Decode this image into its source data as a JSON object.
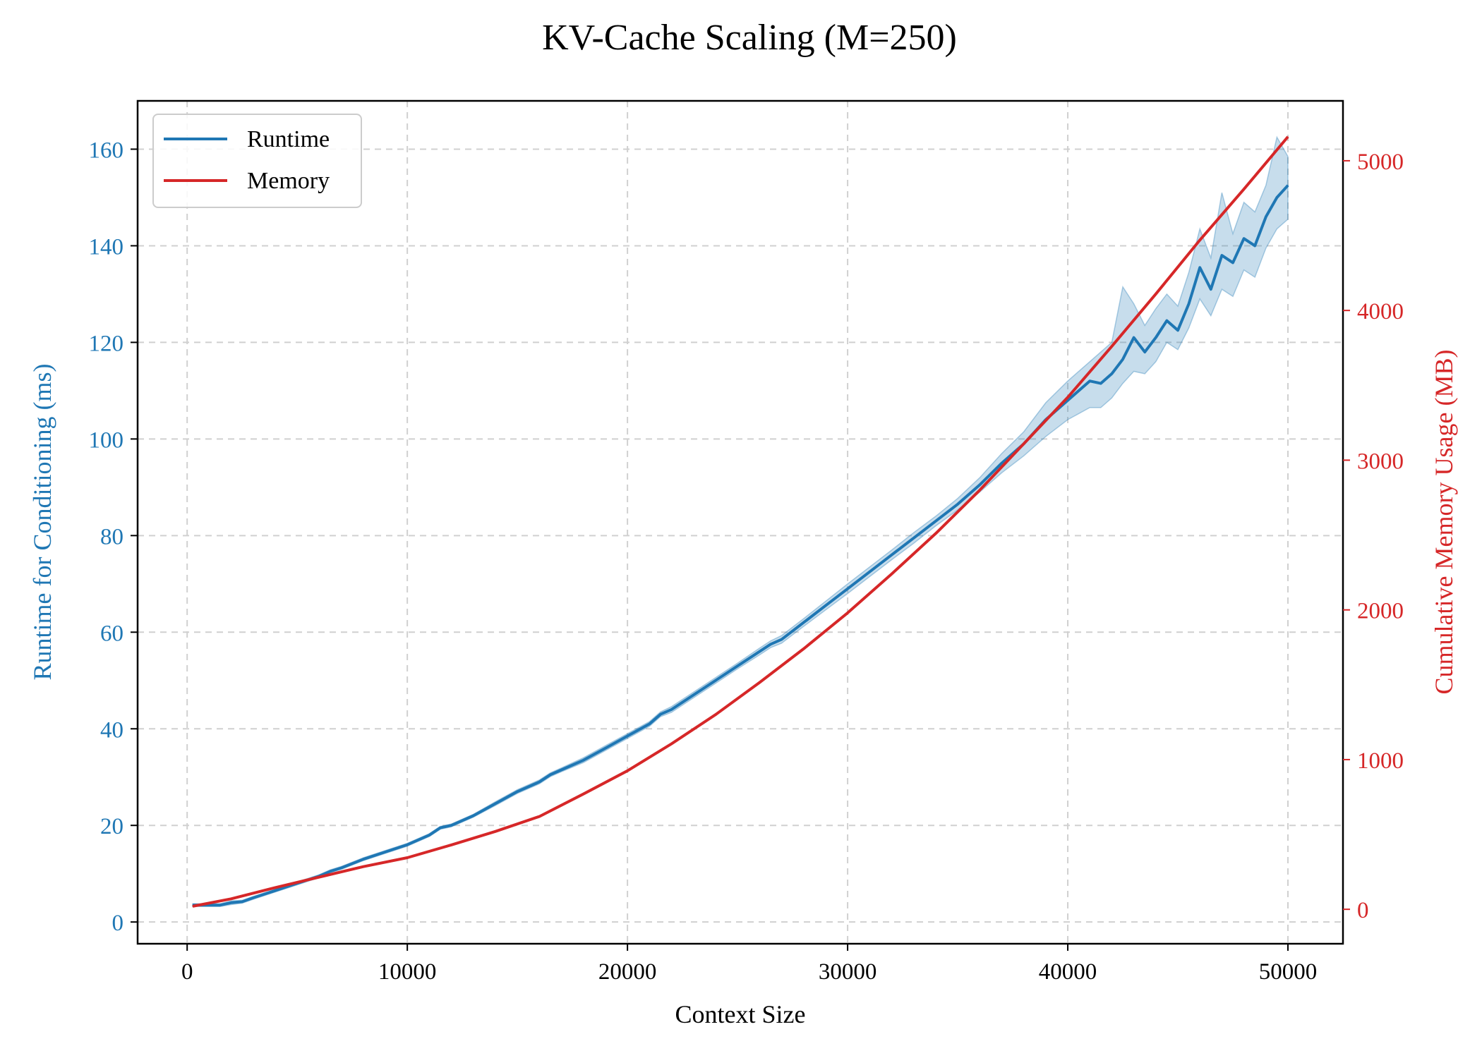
{
  "chart_data": {
    "type": "line",
    "title": "KV-Cache Scaling (M=250)",
    "xlabel": "Context Size",
    "ylabel_left": "Runtime for Conditioning (ms)",
    "ylabel_right": "Cumulative Memory Usage (MB)",
    "xlim": [
      -2250,
      52500
    ],
    "ylim_left": [
      -4.5,
      170
    ],
    "ylim_right": [
      -230,
      5400
    ],
    "x_ticks": [
      0,
      10000,
      20000,
      30000,
      40000,
      50000
    ],
    "y_left_ticks": [
      0,
      20,
      40,
      60,
      80,
      100,
      120,
      140,
      160
    ],
    "y_right_ticks": [
      0,
      1000,
      2000,
      3000,
      4000,
      5000
    ],
    "grid": true,
    "legend_position": "upper-left",
    "colors": {
      "runtime": "#1f77b4",
      "memory": "#d62728",
      "band": "#1f77b4"
    },
    "series": [
      {
        "name": "Runtime",
        "axis": "left",
        "x": [
          250,
          1500,
          2000,
          2500,
          3000,
          4000,
          5000,
          6000,
          6500,
          7000,
          8000,
          9000,
          10000,
          11000,
          11500,
          12000,
          13000,
          14000,
          15000,
          16000,
          16500,
          17000,
          18000,
          19000,
          20000,
          21000,
          21500,
          22000,
          23000,
          24000,
          25000,
          26000,
          26500,
          27000,
          28000,
          29000,
          30000,
          31000,
          32000,
          33000,
          34000,
          35000,
          36000,
          37000,
          38000,
          39000,
          40000,
          41000,
          41500,
          42000,
          42500,
          43000,
          43500,
          44000,
          44500,
          45000,
          45500,
          46000,
          46500,
          47000,
          47500,
          48000,
          48500,
          49000,
          49500,
          50000
        ],
        "values": [
          3.5,
          3.5,
          4.0,
          4.2,
          5.0,
          6.5,
          8.0,
          9.5,
          10.5,
          11.2,
          13.0,
          14.5,
          16.0,
          18.0,
          19.5,
          20.0,
          22.0,
          24.5,
          27.0,
          29.0,
          30.5,
          31.5,
          33.5,
          36.0,
          38.5,
          41.0,
          43.0,
          44.0,
          47.0,
          50.0,
          53.0,
          56.0,
          57.5,
          58.5,
          62.0,
          65.5,
          69.0,
          72.5,
          76.0,
          79.5,
          83.0,
          86.5,
          90.5,
          95.0,
          99.0,
          104.0,
          108.0,
          112.0,
          111.5,
          113.5,
          116.5,
          121.0,
          118.0,
          121.0,
          124.5,
          122.5,
          128.0,
          135.5,
          131.0,
          138.0,
          136.5,
          141.5,
          140.0,
          146.0,
          150.0,
          152.5
        ],
        "lower": [
          3.2,
          3.2,
          3.6,
          3.9,
          4.7,
          6.2,
          7.7,
          9.2,
          10.2,
          10.9,
          12.7,
          14.2,
          15.7,
          17.7,
          19.2,
          19.7,
          21.7,
          24.1,
          26.6,
          28.6,
          30.1,
          31.1,
          33.0,
          35.5,
          38.0,
          40.5,
          42.5,
          43.4,
          46.4,
          49.4,
          52.4,
          55.3,
          56.8,
          57.7,
          61.2,
          64.6,
          68.0,
          71.5,
          75.0,
          78.4,
          82.0,
          85.3,
          89.0,
          93.0,
          96.5,
          100.5,
          104.0,
          106.5,
          106.5,
          108.5,
          111.5,
          114.0,
          113.5,
          116.0,
          120.0,
          118.5,
          123.0,
          129.0,
          125.5,
          131.0,
          129.5,
          135.0,
          133.5,
          139.5,
          143.5,
          145.5
        ],
        "upper": [
          3.8,
          3.8,
          4.4,
          4.5,
          5.3,
          6.8,
          8.3,
          9.8,
          10.8,
          11.5,
          13.3,
          14.8,
          16.3,
          18.3,
          19.8,
          20.3,
          22.3,
          24.9,
          27.4,
          29.4,
          30.9,
          31.9,
          34.0,
          36.5,
          39.0,
          41.5,
          43.5,
          44.6,
          47.6,
          50.6,
          53.6,
          56.7,
          58.2,
          59.3,
          62.8,
          66.4,
          70.0,
          73.5,
          77.0,
          80.6,
          84.0,
          87.7,
          92.0,
          97.0,
          101.5,
          107.5,
          112.0,
          116.0,
          118.0,
          120.0,
          131.5,
          128.0,
          123.5,
          127.0,
          130.0,
          127.5,
          134.5,
          143.5,
          137.5,
          151.0,
          142.5,
          149.0,
          147.0,
          152.5,
          162.5,
          158.5
        ]
      },
      {
        "name": "Memory",
        "axis": "right",
        "x": [
          250,
          2000,
          4000,
          6000,
          8000,
          10000,
          12000,
          14000,
          16000,
          18000,
          20000,
          22000,
          24000,
          26000,
          28000,
          30000,
          32000,
          34000,
          36000,
          38000,
          40000,
          42000,
          44000,
          46000,
          48000,
          50000
        ],
        "values": [
          20,
          70,
          145,
          215,
          285,
          345,
          430,
          520,
          620,
          770,
          925,
          1105,
          1300,
          1515,
          1740,
          1980,
          2240,
          2510,
          2800,
          3110,
          3420,
          3760,
          4110,
          4470,
          4810,
          5160
        ]
      }
    ]
  }
}
